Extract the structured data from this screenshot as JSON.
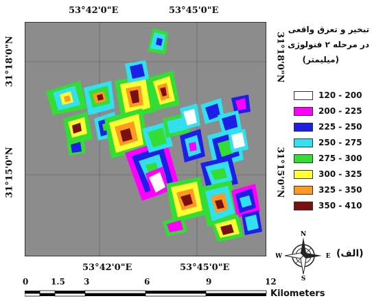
{
  "coordinates": {
    "top_left": "53°42'0\"E",
    "top_right": "53°45'0\"E",
    "bottom_left": "53°42'0\"E",
    "bottom_right": "53°45'0\"E",
    "left_upper": "31°18'0\"N",
    "left_lower": "31°15'0\"N",
    "right_upper": "31°18'0\"N",
    "right_lower": "31°15'0\"N"
  },
  "legend": {
    "title_line1": "تبخیر و تعرق واقعی",
    "title_line2": "در مرحله ۲ فنولوژی",
    "unit": "(میلیمتر)",
    "classes": [
      {
        "label": "120 - 200",
        "color": "#ffffff"
      },
      {
        "label": "200 - 225",
        "color": "#ff00ff"
      },
      {
        "label": "225 - 250",
        "color": "#1e1ee6"
      },
      {
        "label": "250 - 275",
        "color": "#33e0f0"
      },
      {
        "label": "275 - 300",
        "color": "#33dd33"
      },
      {
        "label": "300 - 325",
        "color": "#ffff33"
      },
      {
        "label": "325 - 350",
        "color": "#ff9922"
      },
      {
        "label": "350 - 410",
        "color": "#7a1010"
      }
    ]
  },
  "panel_label": "(الف)",
  "compass": {
    "north": "N",
    "south": "S",
    "east": "E",
    "west": "W"
  },
  "scale_bar": {
    "ticks": [
      "0",
      "1.5",
      "3",
      "6",
      "9",
      "12"
    ],
    "unit": "Kilometers"
  }
}
